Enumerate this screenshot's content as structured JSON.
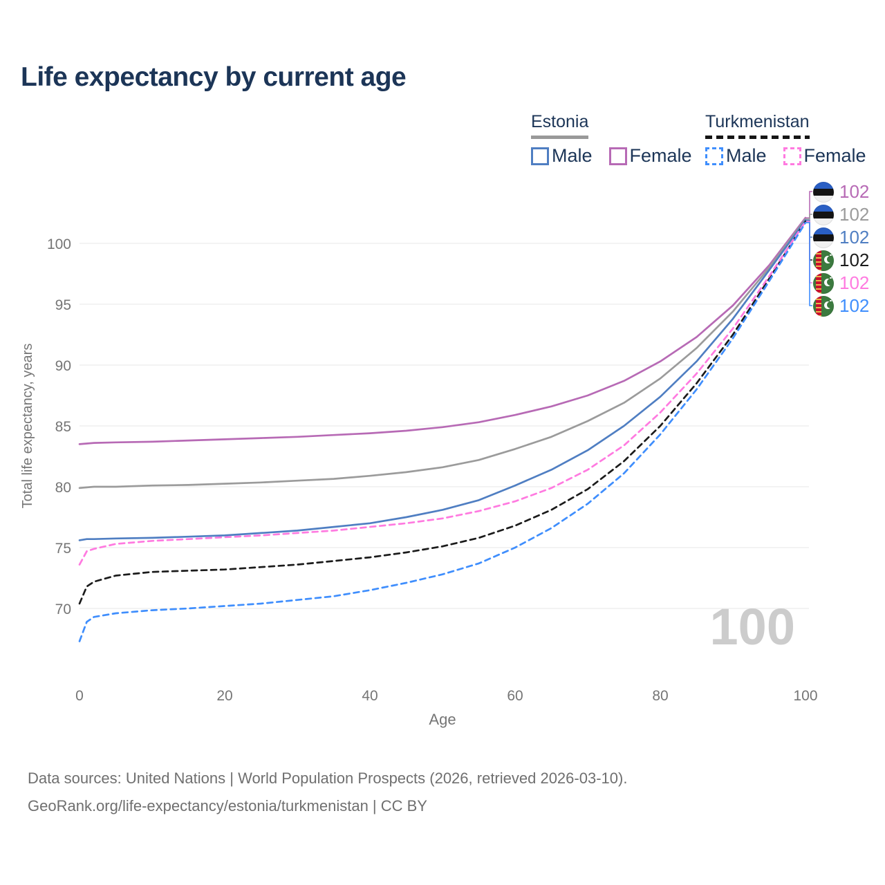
{
  "title": "Life expectancy by current age",
  "colors": {
    "title_text": "#1c3557",
    "axis_text": "#757575",
    "gridline": "#ececec",
    "watermark": "#cccccc",
    "estonia_male": "#4f7ec2",
    "estonia_female": "#b76ab5",
    "estonia_all": "#9b9b9b",
    "turkmenistan_male": "#3f8efd",
    "turkmenistan_female": "#ff7ae0",
    "turkmenistan_all": "#1b1b1b"
  },
  "legend": {
    "groups": [
      {
        "country": "Estonia",
        "line_style": "solid",
        "underline_color": "#999999",
        "items": [
          {
            "label": "Male",
            "color": "#4f7ec2",
            "dashed": false
          },
          {
            "label": "Female",
            "color": "#b76ab5",
            "dashed": false
          }
        ]
      },
      {
        "country": "Turkmenistan",
        "line_style": "dashed",
        "underline_color": "#151515",
        "items": [
          {
            "label": "Male",
            "color": "#3f8efd",
            "dashed": true
          },
          {
            "label": "Female",
            "color": "#ff7ae0",
            "dashed": true
          }
        ]
      }
    ]
  },
  "watermark": "100",
  "footer": {
    "line1": "Data sources: United Nations | World Population Prospects (2026, retrieved 2026-03-10).",
    "line2": "GeoRank.org/life-expectancy/estonia/turkmenistan | CC BY"
  },
  "chart_data": {
    "type": "line",
    "title": "Life expectancy by current age",
    "xlabel": "Age",
    "ylabel": "Total life expectancy, years",
    "x_ticks": [
      0,
      20,
      40,
      60,
      80,
      100
    ],
    "y_ticks": [
      70,
      75,
      80,
      85,
      90,
      95,
      100
    ],
    "xlim": [
      0,
      100
    ],
    "ylim": [
      66.5,
      102.5
    ],
    "grid": "horizontal",
    "legend_position": "top-right",
    "x": [
      0,
      1,
      2,
      5,
      10,
      15,
      20,
      25,
      30,
      35,
      40,
      45,
      50,
      55,
      60,
      65,
      70,
      75,
      80,
      85,
      90,
      95,
      100
    ],
    "series": [
      {
        "name": "Estonia Female",
        "country": "estonia",
        "sex": "Female",
        "color": "#b76ab5",
        "dashed": false,
        "end_label": "102",
        "values": [
          83.5,
          83.55,
          83.6,
          83.65,
          83.7,
          83.8,
          83.9,
          84.0,
          84.1,
          84.25,
          84.4,
          84.6,
          84.9,
          85.3,
          85.9,
          86.6,
          87.5,
          88.7,
          90.3,
          92.3,
          94.9,
          98.2,
          102.1
        ]
      },
      {
        "name": "Estonia Both sexes",
        "country": "estonia",
        "sex": "Both",
        "color": "#9b9b9b",
        "dashed": false,
        "end_label": "102",
        "values": [
          79.9,
          79.95,
          80.0,
          80.0,
          80.1,
          80.15,
          80.25,
          80.35,
          80.5,
          80.65,
          80.9,
          81.2,
          81.6,
          82.2,
          83.1,
          84.1,
          85.4,
          86.9,
          88.9,
          91.4,
          94.4,
          98.0,
          102.0
        ]
      },
      {
        "name": "Estonia Male",
        "country": "estonia",
        "sex": "Male",
        "color": "#4f7ec2",
        "dashed": false,
        "end_label": "102",
        "values": [
          75.6,
          75.7,
          75.7,
          75.75,
          75.8,
          75.9,
          76.0,
          76.2,
          76.4,
          76.7,
          77.0,
          77.5,
          78.1,
          78.9,
          80.1,
          81.4,
          83.0,
          85.0,
          87.4,
          90.3,
          93.8,
          97.8,
          101.9
        ]
      },
      {
        "name": "Turkmenistan Both sexes",
        "country": "turkmenistan",
        "sex": "Both",
        "color": "#1b1b1b",
        "dashed": true,
        "end_label": "102",
        "values": [
          70.4,
          71.8,
          72.2,
          72.7,
          73.0,
          73.1,
          73.2,
          73.4,
          73.6,
          73.9,
          74.2,
          74.6,
          75.1,
          75.8,
          76.8,
          78.1,
          79.8,
          82.1,
          85.0,
          88.5,
          92.5,
          97.1,
          101.8
        ]
      },
      {
        "name": "Turkmenistan Female",
        "country": "turkmenistan",
        "sex": "Female",
        "color": "#ff7ae0",
        "dashed": true,
        "end_label": "102",
        "values": [
          73.6,
          74.7,
          74.9,
          75.3,
          75.55,
          75.7,
          75.85,
          76.0,
          76.2,
          76.4,
          76.7,
          77.0,
          77.4,
          78.0,
          78.8,
          79.9,
          81.4,
          83.4,
          86.1,
          89.3,
          93.0,
          97.3,
          101.8
        ]
      },
      {
        "name": "Turkmenistan Male",
        "country": "turkmenistan",
        "sex": "Male",
        "color": "#3f8efd",
        "dashed": true,
        "end_label": "102",
        "values": [
          67.3,
          68.9,
          69.3,
          69.6,
          69.85,
          70.0,
          70.2,
          70.4,
          70.7,
          71.0,
          71.5,
          72.1,
          72.8,
          73.7,
          75.0,
          76.6,
          78.6,
          81.1,
          84.3,
          88.0,
          92.2,
          96.9,
          101.7
        ]
      }
    ]
  }
}
